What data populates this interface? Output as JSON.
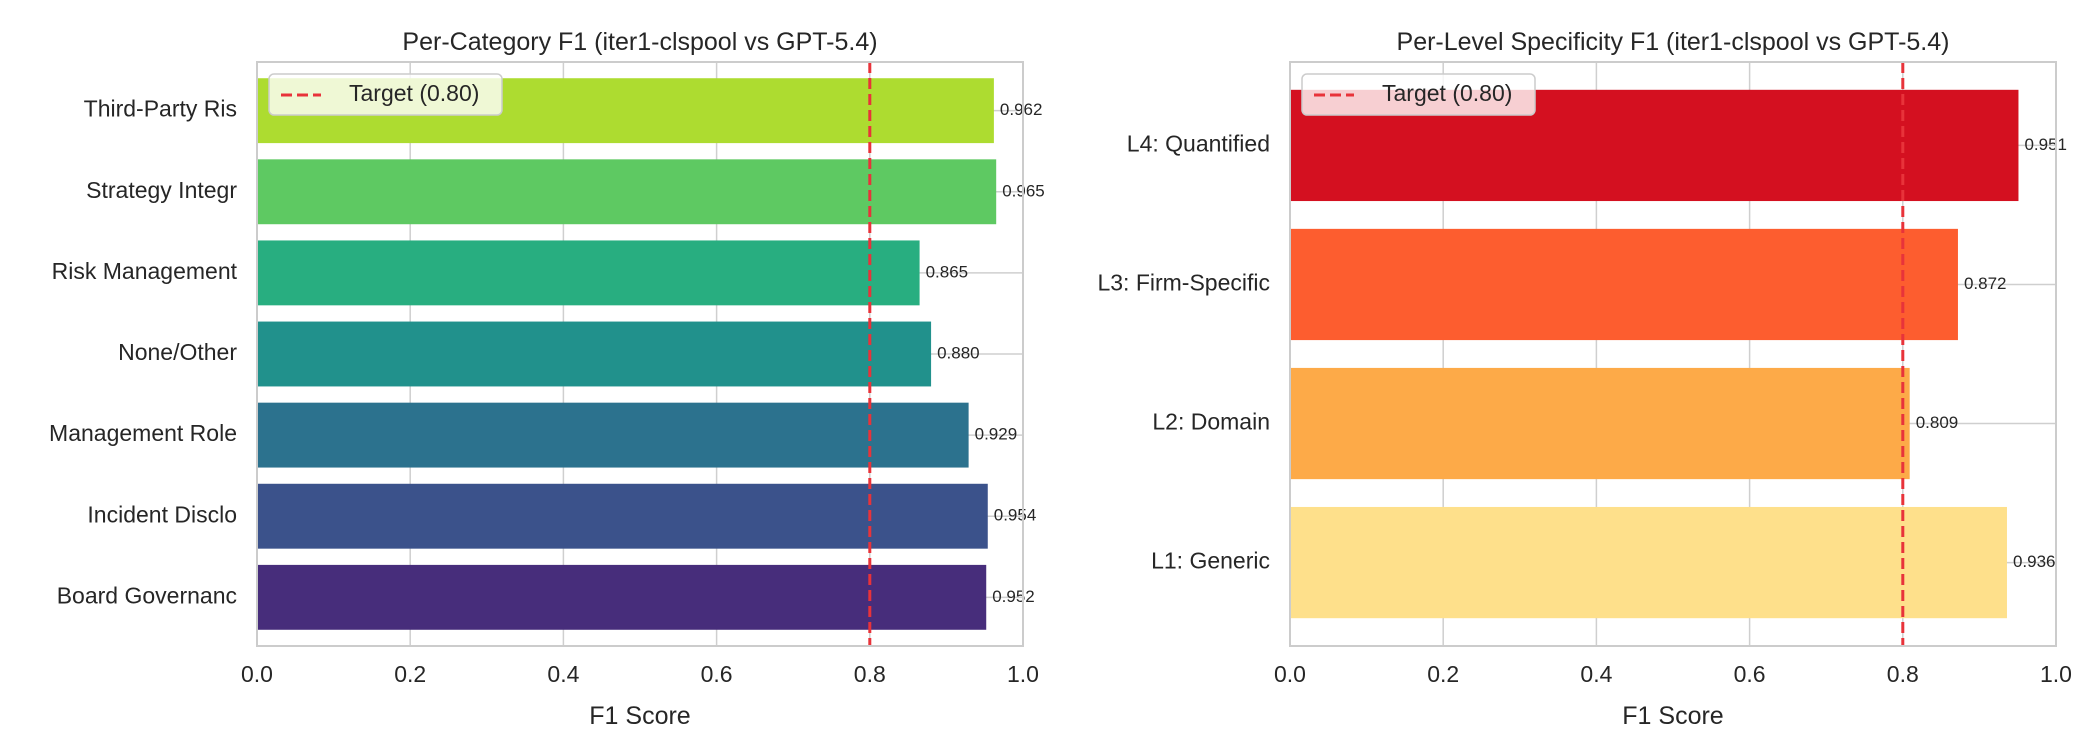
{
  "figure": {
    "background": "#ffffff",
    "grid_color": "#cfcfcf",
    "spine_color": "#cccccc",
    "target_line_color": "#e8333a"
  },
  "chart_data": [
    {
      "type": "bar",
      "orientation": "horizontal",
      "title": "Per-Category F1 (iter1-clspool vs GPT-5.4)",
      "xlabel": "F1 Score",
      "ylabel": "",
      "xlim": [
        0.0,
        1.0
      ],
      "xticks": [
        "0.0",
        "0.2",
        "0.4",
        "0.6",
        "0.8",
        "1.0"
      ],
      "grid": true,
      "legend_position": "upper-left",
      "categories": [
        "Board Governanc",
        "Incident Disclo",
        "Management Role",
        "None/Other",
        "Risk Management",
        "Strategy Integr",
        "Third-Party Ris"
      ],
      "values": [
        0.952,
        0.954,
        0.929,
        0.88,
        0.865,
        0.965,
        0.962
      ],
      "value_labels": [
        "0.952",
        "0.954",
        "0.929",
        "0.880",
        "0.865",
        "0.965",
        "0.962"
      ],
      "colors": [
        "#472d7b",
        "#3b528b",
        "#2c728e",
        "#21918c",
        "#28ae80",
        "#5ec962",
        "#addc30"
      ],
      "reference_line": {
        "value": 0.8,
        "label": "Target (0.80)",
        "style": "dashed"
      }
    },
    {
      "type": "bar",
      "orientation": "horizontal",
      "title": "Per-Level Specificity F1 (iter1-clspool vs GPT-5.4)",
      "xlabel": "F1 Score",
      "ylabel": "",
      "xlim": [
        0.0,
        1.0
      ],
      "xticks": [
        "0.0",
        "0.2",
        "0.4",
        "0.6",
        "0.8",
        "1.0"
      ],
      "grid": true,
      "legend_position": "upper-left",
      "categories": [
        "L1: Generic",
        "L2: Domain",
        "L3: Firm-Specific",
        "L4: Quantified"
      ],
      "values": [
        0.936,
        0.809,
        0.872,
        0.951
      ],
      "value_labels": [
        "0.936",
        "0.809",
        "0.872",
        "0.951"
      ],
      "colors": [
        "#fee08b",
        "#fdaa48",
        "#fd5d2f",
        "#d41020"
      ],
      "reference_line": {
        "value": 0.8,
        "label": "Target (0.80)",
        "style": "dashed"
      }
    }
  ]
}
